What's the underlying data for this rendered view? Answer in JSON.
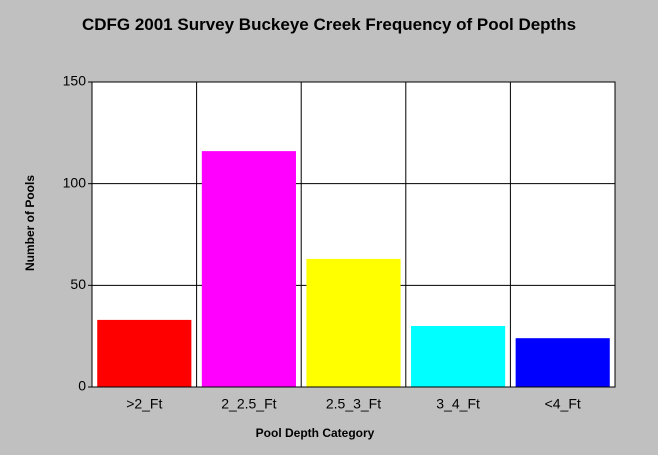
{
  "chart_data": {
    "type": "bar",
    "title": "CDFG 2001 Survey Buckeye Creek Frequency of Pool Depths",
    "x_label": "Pool Depth Category",
    "y_label": "Number of Pools",
    "categories": [
      ">2_Ft",
      "2_2.5_Ft",
      "2.5_3_Ft",
      "3_4_Ft",
      "<4_Ft"
    ],
    "values": [
      33,
      116,
      63,
      30,
      24
    ],
    "colors": [
      "#ff0000",
      "#ff00ff",
      "#ffff00",
      "#00ffff",
      "#0000ff"
    ],
    "ylim": [
      0,
      150
    ],
    "yticks": [
      0,
      50,
      100,
      150
    ],
    "grid": true
  }
}
